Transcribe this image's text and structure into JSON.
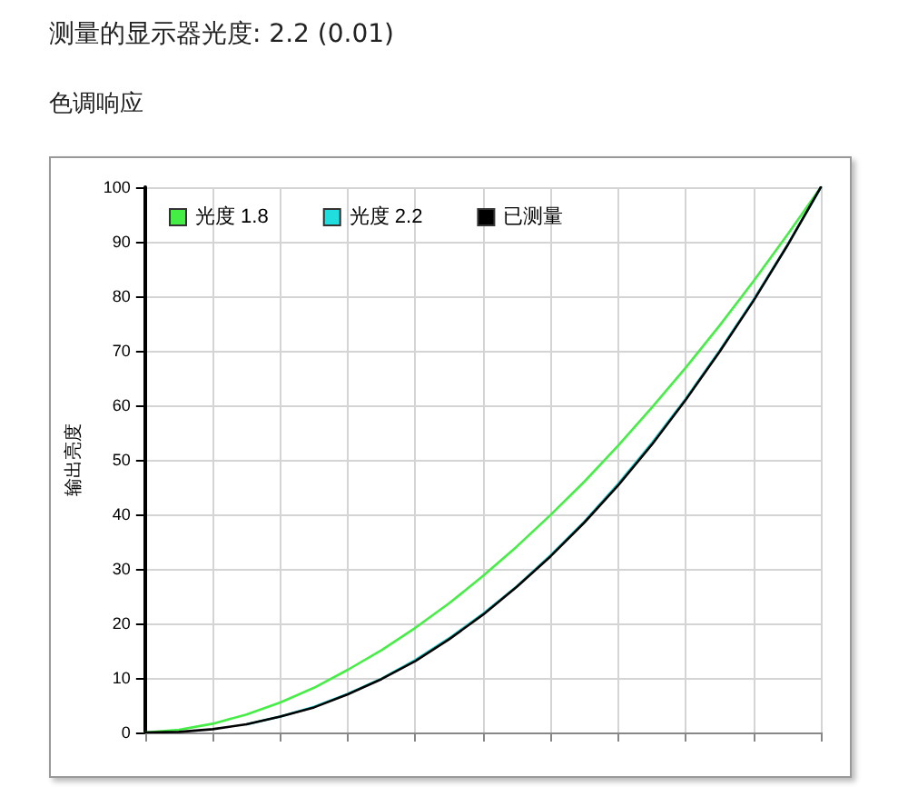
{
  "chart_data": {
    "type": "line",
    "title": "测量的显示器光度: 2.2 (0.01)",
    "subtitle": "色调响应",
    "ylabel": "输出亮度",
    "categories": [
      null,
      null,
      null,
      null,
      null,
      null,
      null,
      null,
      null,
      null,
      null,
      null,
      null,
      null,
      null,
      null,
      null,
      null,
      null,
      null,
      null
    ],
    "series": [
      {
        "name": "光度 1.8",
        "color": "#44ee44",
        "values": [
          0,
          0.5,
          1.6,
          3.3,
          5.5,
          8.2,
          11.5,
          15.1,
          19.2,
          23.7,
          28.7,
          34.1,
          39.9,
          46.0,
          52.6,
          59.6,
          66.9,
          74.6,
          82.7,
          91.2,
          100
        ]
      },
      {
        "name": "光度 2.2",
        "color": "#22dddd",
        "values": [
          null,
          null,
          null,
          1.5,
          2.9,
          4.7,
          7.1,
          9.9,
          13.3,
          17.3,
          21.8,
          26.8,
          32.5,
          38.7,
          45.6,
          53.1,
          61.2,
          70.0,
          79.3,
          89.3,
          100
        ]
      },
      {
        "name": "已测量",
        "color": "#000000",
        "values": [
          0,
          0.1,
          0.6,
          1.5,
          2.9,
          4.6,
          7.0,
          9.8,
          13.1,
          17.1,
          21.6,
          26.7,
          32.3,
          38.5,
          45.3,
          52.8,
          61.0,
          69.8,
          79.1,
          89.2,
          100
        ]
      }
    ],
    "ylim": [
      0,
      100
    ],
    "yticks": [
      0,
      10,
      20,
      30,
      40,
      50,
      60,
      70,
      80,
      90,
      100
    ],
    "tick_labels": "y",
    "grid": true,
    "legend": "top left",
    "marker": "none",
    "line_style": "solid"
  }
}
